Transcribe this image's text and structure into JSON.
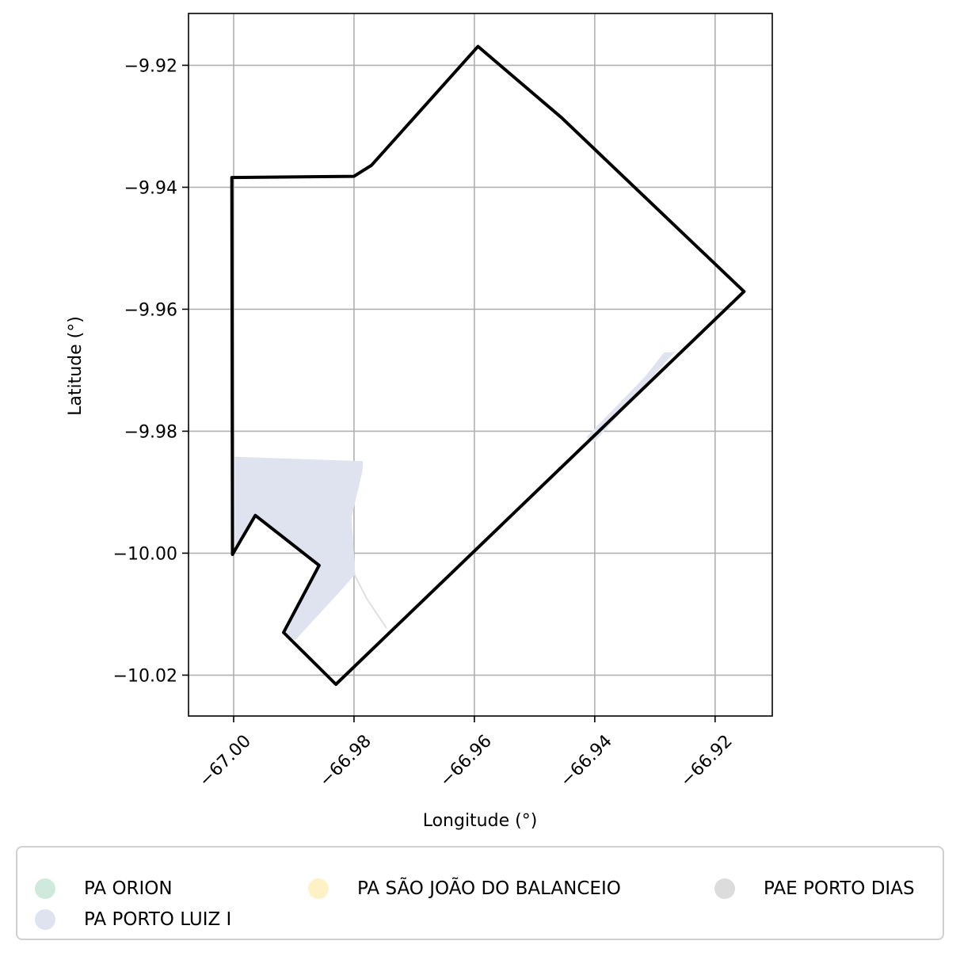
{
  "chart_data": {
    "type": "map",
    "xlabel": "Longitude (°)",
    "ylabel": "Latitude (°)",
    "xlim": [
      -67.0075,
      -66.9105
    ],
    "ylim": [
      -10.0267,
      -9.9115
    ],
    "grid": true,
    "x_ticks": [
      -67.0,
      -66.98,
      -66.96,
      -66.94,
      -66.92
    ],
    "x_tick_labels": [
      "−67.00",
      "−66.98",
      "−66.96",
      "−66.94",
      "−66.92"
    ],
    "y_ticks": [
      -9.92,
      -9.94,
      -9.96,
      -9.98,
      -10.0,
      -10.02
    ],
    "y_tick_labels": [
      "−9.92",
      "−9.94",
      "−9.96",
      "−9.98",
      "−10.00",
      "−10.02"
    ],
    "boundary": {
      "color": "#000000",
      "coords": [
        [
          -67.0003,
          -9.9384
        ],
        [
          -66.98,
          -9.9382
        ],
        [
          -66.9771,
          -9.9364
        ],
        [
          -66.9594,
          -9.9169
        ],
        [
          -66.9455,
          -9.9286
        ],
        [
          -66.9152,
          -9.9571
        ],
        [
          -66.983,
          -10.0215
        ],
        [
          -66.9917,
          -10.013
        ],
        [
          -66.9858,
          -10.002
        ],
        [
          -66.9964,
          -9.9938
        ],
        [
          -67.0002,
          -10.0002
        ],
        [
          -67.0003,
          -9.9384
        ]
      ]
    },
    "regions": [
      {
        "name": "PA PORTO LUIZ I",
        "color": "#dfe3f0",
        "polygons": [
          [
            [
              -66.9998,
              -9.9842
            ],
            [
              -66.9785,
              -9.9849
            ],
            [
              -66.9786,
              -9.9865
            ],
            [
              -66.9804,
              -9.9941
            ],
            [
              -66.9798,
              -10.0034
            ],
            [
              -66.9818,
              -10.0057
            ],
            [
              -66.9898,
              -10.0143
            ],
            [
              -66.9917,
              -10.013
            ],
            [
              -66.9858,
              -10.002
            ],
            [
              -66.9964,
              -9.9938
            ],
            [
              -66.9998,
              -9.999
            ]
          ],
          [
            [
              -66.9414,
              -9.981
            ],
            [
              -66.9316,
              -9.971
            ],
            [
              -66.9285,
              -9.9671
            ],
            [
              -66.9267,
              -9.967
            ],
            [
              -66.94,
              -9.9817
            ]
          ]
        ]
      }
    ],
    "lines": [
      {
        "color": "#e0e0e0",
        "coords": [
          [
            -66.98,
            -10.0034
          ],
          [
            -66.9778,
            -10.0076
          ],
          [
            -66.9746,
            -10.0123
          ]
        ]
      }
    ],
    "legend": {
      "placement": "below",
      "columns": 3,
      "entries": [
        {
          "name": "PA ORION",
          "color": "#cfeadc"
        },
        {
          "name": "PA PORTO LUIZ I",
          "color": "#dfe3f0"
        },
        {
          "name": "PA SÃO JOÃO DO BALANCEIO",
          "color": "#fdf2c5"
        },
        {
          "name": "PAE PORTO DIAS",
          "color": "#dcdcdc"
        }
      ]
    }
  }
}
